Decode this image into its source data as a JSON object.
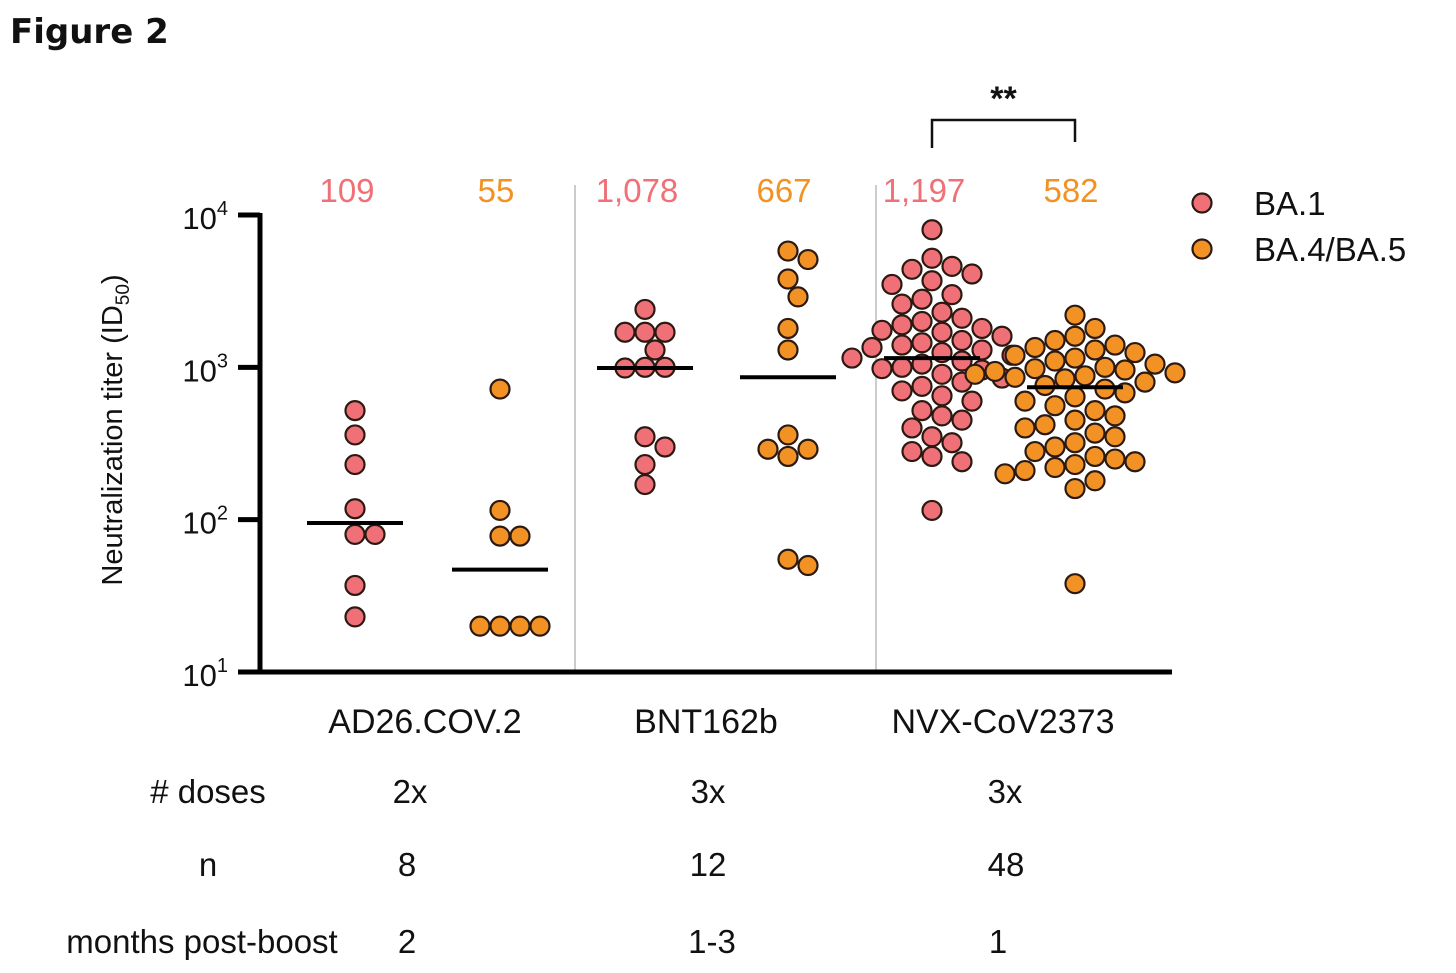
{
  "figure_label": "Figure 2",
  "chart_data": {
    "type": "scatter",
    "yscale": "log",
    "ylim": [
      10,
      10000
    ],
    "ylabel": "Neutralization titer (ID",
    "ylabel_sub": "50",
    "ylabel_suffix": ")",
    "yticks": [
      {
        "value": 10,
        "base": "10",
        "exp": "1"
      },
      {
        "value": 100,
        "base": "10",
        "exp": "2"
      },
      {
        "value": 1000,
        "base": "10",
        "exp": "3"
      },
      {
        "value": 10000,
        "base": "10",
        "exp": "4"
      }
    ],
    "colors": {
      "BA.1": "#f07078",
      "BA.4/BA.5": "#f39224",
      "outline": "#2b1a12",
      "axis": "#000000",
      "divider": "#cccccc"
    },
    "legend": [
      {
        "name": "BA.1",
        "color": "#f07078"
      },
      {
        "name": "BA.4/BA.5",
        "color": "#f39224"
      }
    ],
    "groups": [
      {
        "name": "AD26.COV.2",
        "doses": "2x",
        "n": "8",
        "months": "2",
        "series": [
          {
            "variant": "BA.1",
            "gmt_label": "109",
            "median": 95,
            "points": [
              520,
              360,
              230,
              118,
              80,
              80,
              37,
              23
            ]
          },
          {
            "variant": "BA.4/BA.5",
            "gmt_label": "55",
            "median": 47,
            "points": [
              720,
              115,
              78,
              78,
              20,
              20,
              20,
              20
            ]
          }
        ]
      },
      {
        "name": "BNT162b",
        "doses": "3x",
        "n": "12",
        "months": "1-3",
        "series": [
          {
            "variant": "BA.1",
            "gmt_label": "1,078",
            "median": 990,
            "points": [
              2400,
              1700,
              1700,
              1300,
              1000,
              1000,
              990,
              350,
              300,
              230,
              170,
              1700
            ]
          },
          {
            "variant": "BA.4/BA.5",
            "gmt_label": "667",
            "median": 860,
            "points": [
              5800,
              5100,
              3800,
              2900,
              1800,
              1300,
              360,
              290,
              290,
              260,
              55,
              50
            ]
          }
        ]
      },
      {
        "name": "NVX-CoV2373",
        "doses": "3x",
        "n": "48",
        "months": "1",
        "series": [
          {
            "variant": "BA.1",
            "gmt_label": "1,197",
            "median": 1150,
            "points": [
              8000,
              5200,
              4600,
              4400,
              4100,
              3700,
              3500,
              3000,
              2800,
              2600,
              2300,
              2100,
              2000,
              1900,
              1800,
              1750,
              1700,
              1600,
              1500,
              1450,
              1400,
              1350,
              1300,
              1250,
              1200,
              1150,
              1100,
              1050,
              1000,
              980,
              960,
              900,
              850,
              800,
              750,
              700,
              650,
              600,
              520,
              480,
              450,
              400,
              350,
              320,
              280,
              260,
              240,
              115
            ]
          },
          {
            "variant": "BA.4/BA.5",
            "gmt_label": "582",
            "median": 740,
            "points": [
              2200,
              1800,
              1600,
              1500,
              1400,
              1350,
              1300,
              1250,
              1200,
              1150,
              1100,
              1050,
              1000,
              980,
              960,
              940,
              920,
              900,
              880,
              860,
              840,
              800,
              760,
              720,
              680,
              640,
              600,
              560,
              520,
              480,
              450,
              420,
              400,
              370,
              350,
              320,
              300,
              280,
              260,
              250,
              240,
              230,
              220,
              210,
              200,
              180,
              160,
              38
            ]
          }
        ]
      }
    ],
    "significance": {
      "label": "**",
      "between": [
        "BA.1",
        "BA.4/BA.5"
      ],
      "group": "NVX-CoV2373"
    },
    "table_rows": [
      {
        "key": "doses",
        "label": "# doses"
      },
      {
        "key": "n",
        "label": "n"
      },
      {
        "key": "months",
        "label": "months post-boost"
      }
    ]
  }
}
